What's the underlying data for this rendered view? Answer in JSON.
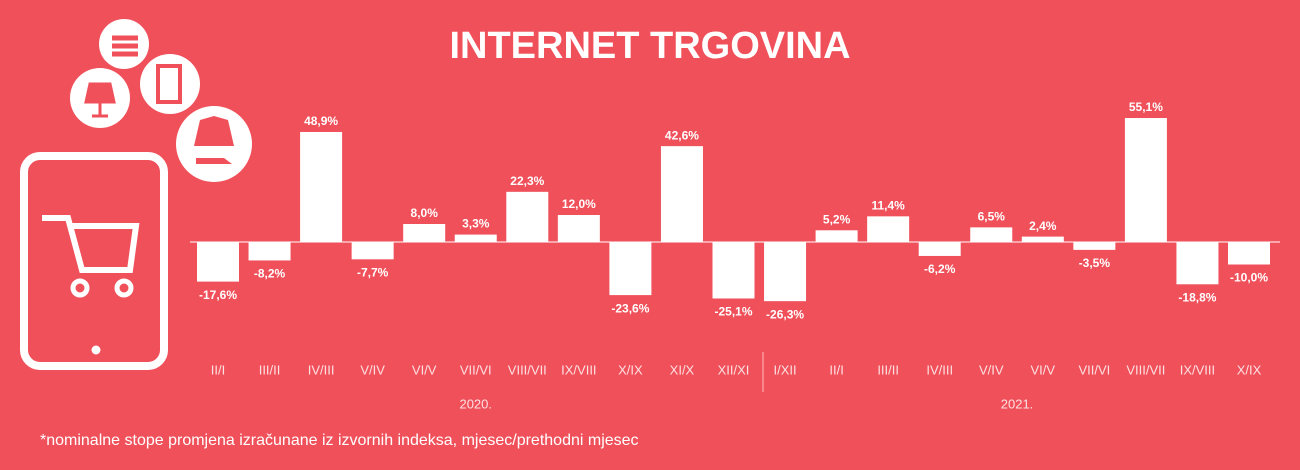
{
  "chart_data": {
    "type": "bar",
    "title": "INTERNET TRGOVINA",
    "categories": [
      "II/I",
      "III/II",
      "IV/III",
      "V/IV",
      "VI/V",
      "VII/VI",
      "VIII/VII",
      "IX/VIII",
      "X/IX",
      "XI/X",
      "XII/XI",
      "I/XII",
      "II/I",
      "III/II",
      "IV/III",
      "V/IV",
      "VI/V",
      "VII/VI",
      "VIII/VII",
      "IX/VIII",
      "X/IX"
    ],
    "values": [
      -17.6,
      -8.2,
      48.9,
      -7.7,
      8.0,
      3.3,
      22.3,
      12.0,
      -23.6,
      42.6,
      -25.1,
      -26.3,
      5.2,
      11.4,
      -6.2,
      6.5,
      2.4,
      -3.5,
      55.1,
      -18.8,
      -10.0
    ],
    "value_labels": [
      "-17,6%",
      "-8,2%",
      "48,9%",
      "-7,7%",
      "8,0%",
      "3,3%",
      "22,3%",
      "12,0%",
      "-23,6%",
      "42,6%",
      "-25,1%",
      "-26,3%",
      "5,2%",
      "11,4%",
      "-6,2%",
      "6,5%",
      "2,4%",
      "-3,5%",
      "55,1%",
      "-18,8%",
      "-10,0%"
    ],
    "color": "#ffffff",
    "year_labels": [
      "2020.",
      "2021."
    ],
    "note": "*nominalne stope promjena izračunane iz izvornih indeksa, mjesec/prethodni mjesec"
  }
}
